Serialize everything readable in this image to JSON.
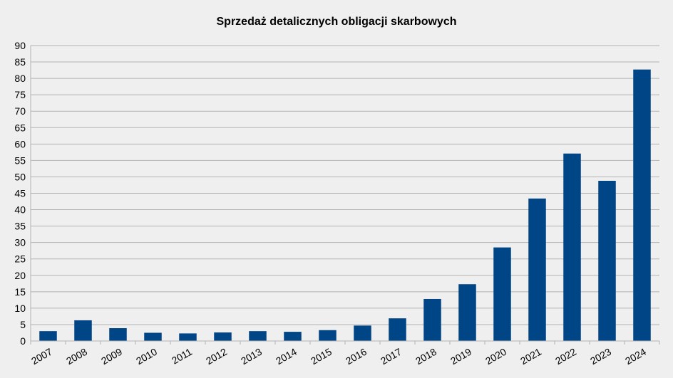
{
  "chart_data": {
    "type": "bar",
    "title": "Sprzedaż detalicznych obligacji skarbowych",
    "xlabel": "",
    "ylabel": "",
    "categories": [
      "2007",
      "2008",
      "2009",
      "2010",
      "2011",
      "2012",
      "2013",
      "2014",
      "2015",
      "2016",
      "2017",
      "2018",
      "2019",
      "2020",
      "2021",
      "2022",
      "2023",
      "2024"
    ],
    "values": [
      3.0,
      6.3,
      3.9,
      2.5,
      2.3,
      2.6,
      3.0,
      2.8,
      3.3,
      4.7,
      6.9,
      12.8,
      17.3,
      28.5,
      43.4,
      57.1,
      48.8,
      82.7
    ],
    "ylim": [
      0,
      90
    ],
    "yticks": [
      "0",
      "5",
      "10",
      "15",
      "20",
      "25",
      "30",
      "35",
      "40",
      "45",
      "50",
      "55",
      "60",
      "65",
      "70",
      "75",
      "80",
      "85",
      "90"
    ],
    "grid": true,
    "legend": "none",
    "bar_color": "#004586",
    "grid_color": "#b3b3b3",
    "background": "#efefef"
  }
}
